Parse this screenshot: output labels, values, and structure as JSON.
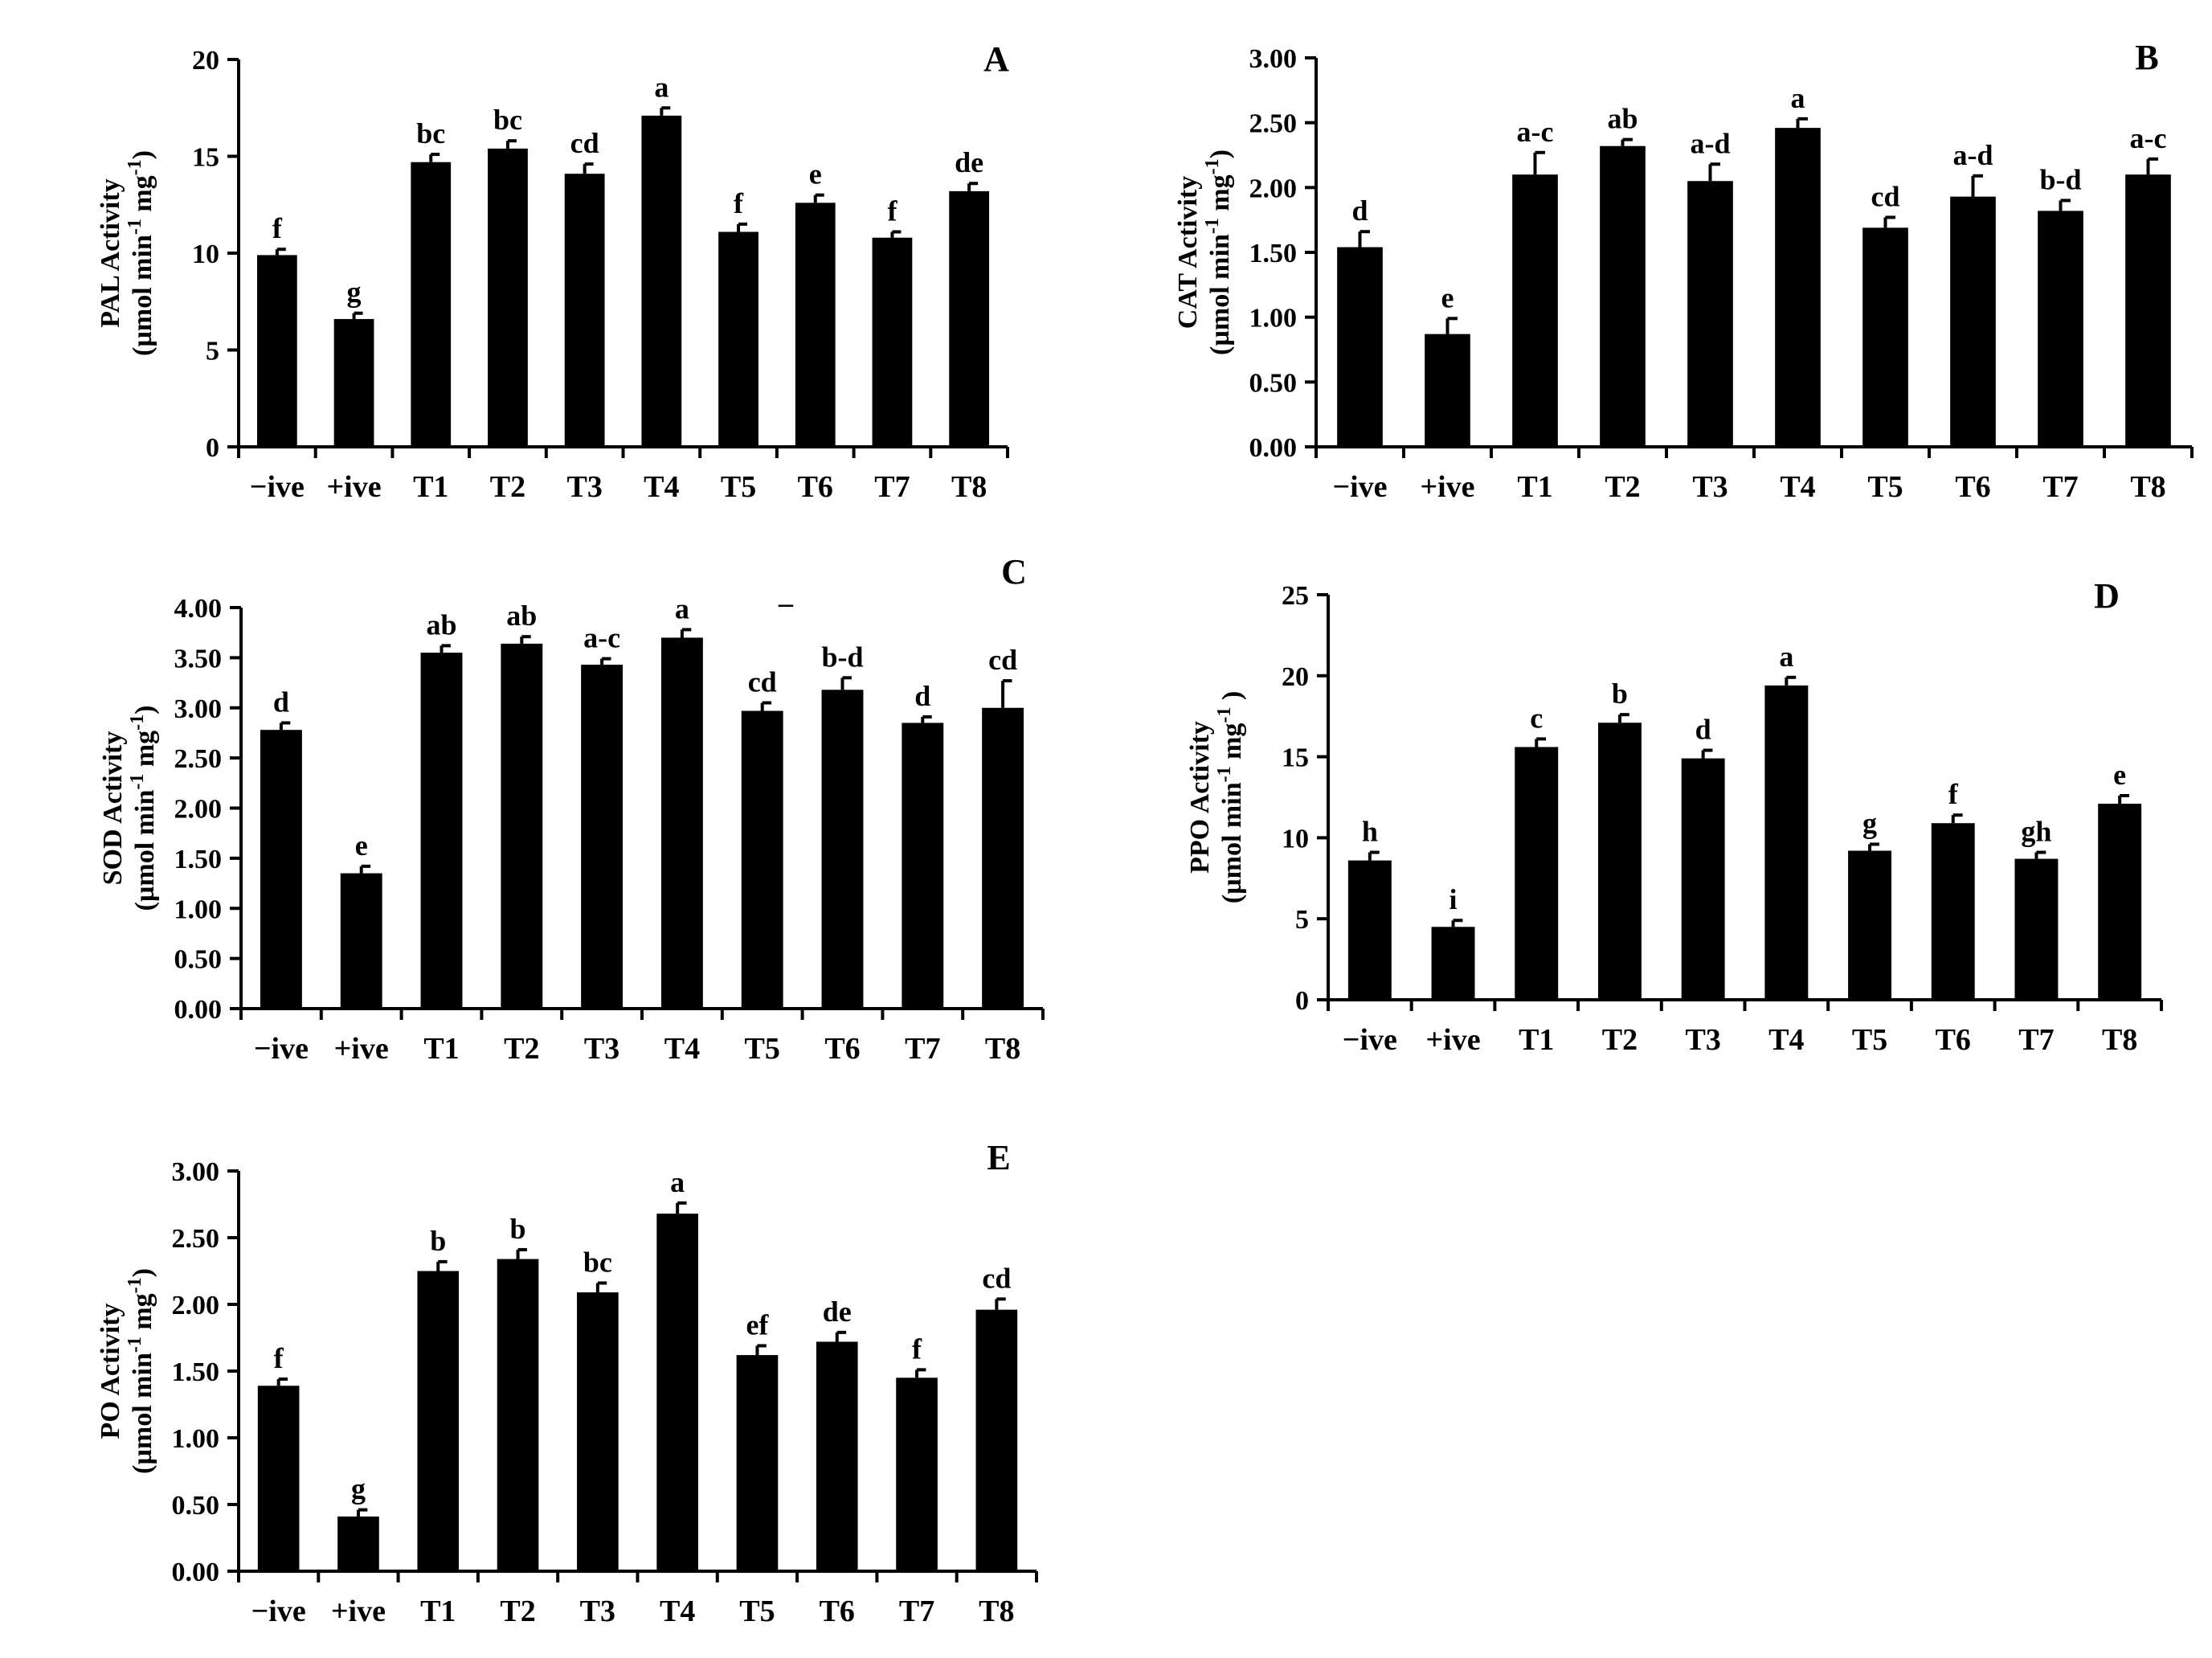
{
  "chart_data": [
    {
      "type": "bar",
      "panel": "A",
      "categories": [
        "−ive",
        "+ive",
        "T1",
        "T2",
        "T3",
        "T4",
        "T5",
        "T6",
        "T7",
        "T8"
      ],
      "values": [
        9.9,
        6.6,
        14.7,
        15.4,
        14.1,
        17.1,
        11.1,
        12.6,
        10.8,
        13.2
      ],
      "errors": [
        0.3,
        0.3,
        0.4,
        0.4,
        0.5,
        0.4,
        0.4,
        0.4,
        0.3,
        0.4
      ],
      "significance": [
        "f",
        "g",
        "bc",
        "bc",
        "cd",
        "a",
        "f",
        "e",
        "f",
        "de"
      ],
      "ylabel_line1": "PAL Activity",
      "ylabel_line2": "(µmol min",
      "ylabel_sup1": "-1",
      "ylabel_mid": " mg",
      "ylabel_sup2": "-1",
      "ylabel_end": ")",
      "ylim": [
        0,
        20
      ],
      "yticks": [
        0,
        5,
        10,
        15,
        20
      ],
      "ytick_labels": [
        "0",
        "5",
        "10",
        "15",
        "20"
      ]
    },
    {
      "type": "bar",
      "panel": "B",
      "categories": [
        "−ive",
        "+ive",
        "T1",
        "T2",
        "T3",
        "T4",
        "T5",
        "T6",
        "T7",
        "T8"
      ],
      "values": [
        1.54,
        0.87,
        2.1,
        2.32,
        2.05,
        2.46,
        1.69,
        1.93,
        1.82,
        2.1
      ],
      "errors": [
        0.12,
        0.12,
        0.17,
        0.05,
        0.13,
        0.07,
        0.08,
        0.16,
        0.08,
        0.12
      ],
      "significance": [
        "d",
        "e",
        "a-c",
        "ab",
        "a-d",
        "a",
        "cd",
        "a-d",
        "b-d",
        "a-c"
      ],
      "ylabel_line1": "CAT Activity",
      "ylabel_line2": "(µmol min",
      "ylabel_sup1": "-1",
      "ylabel_mid": " mg",
      "ylabel_sup2": "-1",
      "ylabel_end": ")",
      "ylim": [
        0,
        3
      ],
      "yticks": [
        0,
        0.5,
        1,
        1.5,
        2,
        2.5,
        3
      ],
      "ytick_labels": [
        "0.00",
        "0.50",
        "1.00",
        "1.50",
        "2.00",
        "2.50",
        "3.00"
      ]
    },
    {
      "type": "bar",
      "panel": "C",
      "categories": [
        "−ive",
        "+ive",
        "T1",
        "T2",
        "T3",
        "T4",
        "T5",
        "T6",
        "T7",
        "T8"
      ],
      "values": [
        2.78,
        1.35,
        3.55,
        3.64,
        3.43,
        3.7,
        2.97,
        3.18,
        2.85,
        3.0
      ],
      "errors": [
        0.07,
        0.07,
        0.07,
        0.07,
        0.06,
        0.08,
        0.08,
        0.12,
        0.06,
        0.27
      ],
      "significance": [
        "d",
        "e",
        "ab",
        "ab",
        "a-c",
        "a",
        "cd",
        "b-d",
        "d",
        "cd"
      ],
      "stray_mark": "–",
      "ylabel_line1": "SOD Activity",
      "ylabel_line2": "(µmol min",
      "ylabel_sup1": "-1",
      "ylabel_mid": " mg",
      "ylabel_sup2": "-1",
      "ylabel_end": ")",
      "ylim": [
        0,
        4
      ],
      "yticks": [
        0,
        0.5,
        1,
        1.5,
        2,
        2.5,
        3,
        3.5,
        4
      ],
      "ytick_labels": [
        "0.00",
        "0.50",
        "1.00",
        "1.50",
        "2.00",
        "2.50",
        "3.00",
        "3.50",
        "4.00"
      ]
    },
    {
      "type": "bar",
      "panel": "D",
      "categories": [
        "−ive",
        "+ive",
        "T1",
        "T2",
        "T3",
        "T4",
        "T5",
        "T6",
        "T7",
        "T8"
      ],
      "values": [
        8.6,
        4.5,
        15.6,
        17.1,
        14.9,
        19.4,
        9.2,
        10.9,
        8.7,
        12.1
      ],
      "errors": [
        0.5,
        0.4,
        0.5,
        0.5,
        0.5,
        0.5,
        0.4,
        0.5,
        0.4,
        0.5
      ],
      "significance": [
        "h",
        "i",
        "c",
        "b",
        "d",
        "a",
        "g",
        "f",
        "gh",
        "e"
      ],
      "ylabel_line1": "PPO Activity",
      "ylabel_line2": "(µmol min",
      "ylabel_sup1": "-1",
      "ylabel_mid": "  mg",
      "ylabel_sup2": "-1",
      "ylabel_end": " )",
      "ylim": [
        0,
        25
      ],
      "yticks": [
        0,
        5,
        10,
        15,
        20,
        25
      ],
      "ytick_labels": [
        "0",
        "5",
        "10",
        "15",
        "20",
        "25"
      ]
    },
    {
      "type": "bar",
      "panel": "E",
      "categories": [
        "−ive",
        "+ive",
        "T1",
        "T2",
        "T3",
        "T4",
        "T5",
        "T6",
        "T7",
        "T8"
      ],
      "values": [
        1.39,
        0.41,
        2.25,
        2.34,
        2.09,
        2.68,
        1.62,
        1.72,
        1.45,
        1.96
      ],
      "errors": [
        0.05,
        0.05,
        0.07,
        0.07,
        0.07,
        0.08,
        0.07,
        0.07,
        0.06,
        0.08
      ],
      "significance": [
        "f",
        "g",
        "b",
        "b",
        "bc",
        "a",
        "ef",
        "de",
        "f",
        "cd"
      ],
      "ylabel_line1": "PO Activity",
      "ylabel_line2": "(µmol min",
      "ylabel_sup1": "-1",
      "ylabel_mid": " mg",
      "ylabel_sup2": "-1",
      "ylabel_end": ")",
      "ylim": [
        0,
        3
      ],
      "yticks": [
        0,
        0.5,
        1,
        1.5,
        2,
        2.5,
        3
      ],
      "ytick_labels": [
        "0.00",
        "0.50",
        "1.00",
        "1.50",
        "2.00",
        "2.50",
        "3.00"
      ]
    }
  ]
}
